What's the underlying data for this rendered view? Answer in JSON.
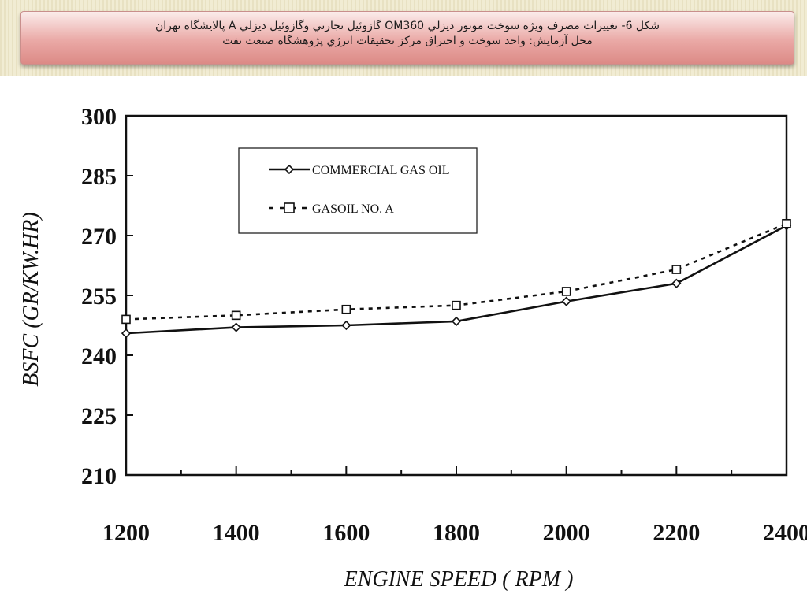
{
  "banner": {
    "line1": "شكل 6- تغييرات مصرف ويژه سوخت موتور ديزلي OM360 گازوئيل تجارتي وگازوئيل ديزلي A پالايشگاه تهران",
    "line2": "محل آزمايش: واحد سوخت و احتراق مركز تحقيقات انرژي پژوهشگاه صنعت نفت"
  },
  "chart_data": {
    "type": "line",
    "title": "",
    "xlabel": "ENGINE SPEED ( RPM )",
    "ylabel": "BSFC (GR/KW.HR)",
    "xlim": [
      1200,
      2400
    ],
    "ylim": [
      210,
      300
    ],
    "x_ticks": [
      1200,
      1400,
      1600,
      1800,
      2000,
      2200,
      2400
    ],
    "y_ticks": [
      300,
      285,
      270,
      255,
      240,
      225,
      210
    ],
    "legend_position": "top-left",
    "grid": false,
    "series": [
      {
        "name": "COMMERCIAL GAS OIL",
        "line_style": "solid",
        "marker": "diamond",
        "x": [
          1200,
          1400,
          1600,
          1800,
          2000,
          2200,
          2400
        ],
        "y": [
          245.5,
          247,
          247.5,
          248.5,
          253.5,
          258,
          272.5
        ]
      },
      {
        "name": "GASOIL NO. A",
        "line_style": "dotted",
        "marker": "square",
        "x": [
          1200,
          1400,
          1600,
          1800,
          2000,
          2200,
          2400
        ],
        "y": [
          249,
          250,
          251.5,
          252.5,
          256,
          261.5,
          273
        ]
      }
    ]
  }
}
